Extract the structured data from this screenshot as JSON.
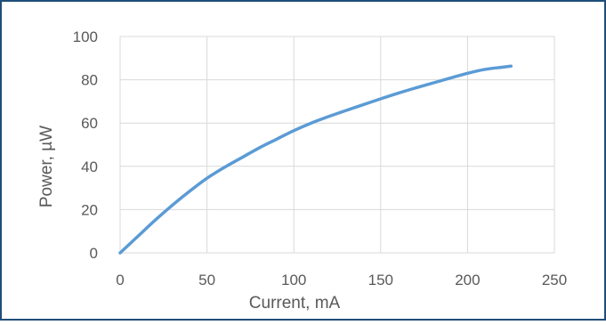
{
  "chart_data": {
    "type": "line",
    "xlabel": "Current, mA",
    "ylabel": "Power, µW",
    "xlim": [
      0,
      250
    ],
    "ylim": [
      0,
      100
    ],
    "xticks": [
      0,
      50,
      100,
      150,
      200,
      250
    ],
    "yticks": [
      0,
      20,
      40,
      60,
      80,
      100
    ],
    "grid": true,
    "series": [
      {
        "color": "#5b9bd5",
        "x": [
          0,
          10,
          20,
          30,
          40,
          50,
          60,
          70,
          80,
          90,
          100,
          110,
          120,
          130,
          140,
          150,
          160,
          170,
          180,
          190,
          200,
          210,
          220,
          225
        ],
        "y": [
          0,
          7.5,
          15,
          22,
          28.5,
          34.5,
          39.5,
          44,
          48.5,
          52.5,
          56.5,
          60,
          63,
          65.8,
          68.5,
          71.2,
          73.8,
          76.2,
          78.5,
          80.8,
          83,
          84.8,
          85.8,
          86.3
        ]
      }
    ]
  },
  "colors": {
    "border": "#1f4e79",
    "grid": "#d9d9d9",
    "text": "#595959",
    "series": "#5b9bd5"
  }
}
